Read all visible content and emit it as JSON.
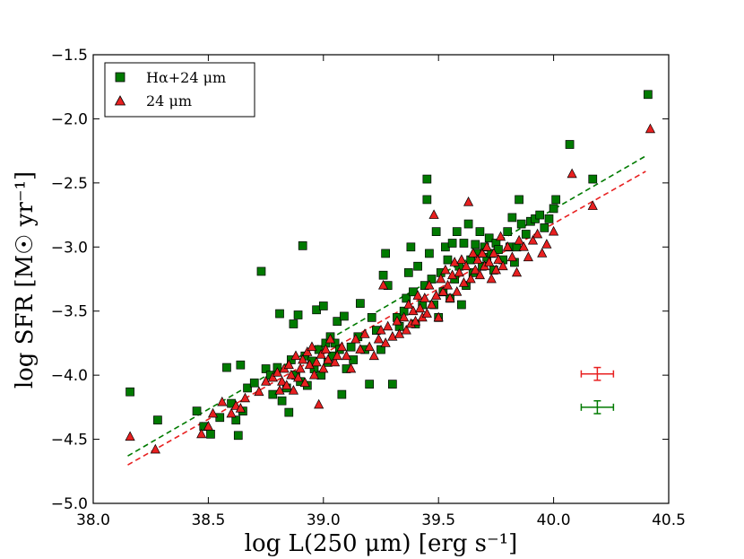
{
  "chart_data": {
    "type": "scatter",
    "xlabel": "log L(250 μm) [erg s⁻¹]",
    "ylabel": "log SFR [M☉ yr⁻¹]",
    "xlim": [
      38.0,
      40.5
    ],
    "ylim": [
      -5.0,
      -1.5
    ],
    "xticks": [
      "38.0",
      "38.5",
      "39.0",
      "39.5",
      "40.0",
      "40.5"
    ],
    "yticks": [
      "−1.5",
      "−2.0",
      "−2.5",
      "−3.0",
      "−3.5",
      "−4.0",
      "−4.5",
      "−5.0"
    ],
    "xtick_values": [
      38.0,
      38.5,
      39.0,
      39.5,
      40.0,
      40.5
    ],
    "ytick_values": [
      -1.5,
      -2.0,
      -2.5,
      -3.0,
      -3.5,
      -4.0,
      -4.5,
      -5.0
    ],
    "legend_position": "top-left",
    "series": [
      {
        "name": "Hα+24 μm",
        "marker": "square",
        "color": "#007a00",
        "fit_line": {
          "x": [
            38.15,
            40.4
          ],
          "y": [
            -4.63,
            -2.29
          ]
        },
        "error_bar": {
          "x": 40.19,
          "y": -4.25,
          "xerr": 0.07,
          "yerr": 0.05
        },
        "points": [
          [
            38.16,
            -4.13
          ],
          [
            38.28,
            -4.35
          ],
          [
            38.45,
            -4.28
          ],
          [
            38.48,
            -4.4
          ],
          [
            38.51,
            -4.46
          ],
          [
            38.55,
            -4.33
          ],
          [
            38.58,
            -3.94
          ],
          [
            38.6,
            -4.22
          ],
          [
            38.62,
            -4.35
          ],
          [
            38.63,
            -4.47
          ],
          [
            38.64,
            -3.92
          ],
          [
            38.65,
            -4.28
          ],
          [
            38.67,
            -4.1
          ],
          [
            38.7,
            -4.06
          ],
          [
            38.73,
            -3.19
          ],
          [
            38.75,
            -3.95
          ],
          [
            38.77,
            -4.0
          ],
          [
            38.78,
            -4.15
          ],
          [
            38.8,
            -3.94
          ],
          [
            38.81,
            -3.52
          ],
          [
            38.82,
            -4.2
          ],
          [
            38.84,
            -4.1
          ],
          [
            38.85,
            -4.29
          ],
          [
            38.86,
            -3.88
          ],
          [
            38.87,
            -3.6
          ],
          [
            38.88,
            -4.0
          ],
          [
            38.89,
            -3.53
          ],
          [
            38.9,
            -4.05
          ],
          [
            38.91,
            -2.99
          ],
          [
            38.92,
            -3.85
          ],
          [
            38.93,
            -4.08
          ],
          [
            38.95,
            -3.89
          ],
          [
            38.96,
            -3.95
          ],
          [
            38.97,
            -3.49
          ],
          [
            38.98,
            -3.8
          ],
          [
            38.99,
            -4.0
          ],
          [
            39.0,
            -3.46
          ],
          [
            39.01,
            -3.75
          ],
          [
            39.02,
            -3.9
          ],
          [
            39.03,
            -3.7
          ],
          [
            39.04,
            -3.85
          ],
          [
            39.05,
            -3.75
          ],
          [
            39.06,
            -3.58
          ],
          [
            39.07,
            -3.8
          ],
          [
            39.08,
            -4.15
          ],
          [
            39.09,
            -3.54
          ],
          [
            39.1,
            -3.95
          ],
          [
            39.12,
            -3.78
          ],
          [
            39.13,
            -3.88
          ],
          [
            39.15,
            -3.7
          ],
          [
            39.16,
            -3.44
          ],
          [
            39.18,
            -3.8
          ],
          [
            39.2,
            -4.07
          ],
          [
            39.21,
            -3.55
          ],
          [
            39.23,
            -3.65
          ],
          [
            39.25,
            -3.8
          ],
          [
            39.26,
            -3.22
          ],
          [
            39.27,
            -3.05
          ],
          [
            39.28,
            -3.3
          ],
          [
            39.3,
            -4.07
          ],
          [
            39.32,
            -3.55
          ],
          [
            39.33,
            -3.62
          ],
          [
            39.35,
            -3.5
          ],
          [
            39.36,
            -3.4
          ],
          [
            39.37,
            -3.2
          ],
          [
            39.38,
            -3.0
          ],
          [
            39.39,
            -3.35
          ],
          [
            39.4,
            -3.6
          ],
          [
            39.41,
            -3.15
          ],
          [
            39.43,
            -3.45
          ],
          [
            39.44,
            -3.3
          ],
          [
            39.45,
            -2.47
          ],
          [
            39.45,
            -2.63
          ],
          [
            39.46,
            -3.05
          ],
          [
            39.47,
            -3.25
          ],
          [
            39.48,
            -3.45
          ],
          [
            39.49,
            -2.88
          ],
          [
            39.5,
            -3.55
          ],
          [
            39.51,
            -3.2
          ],
          [
            39.52,
            -3.35
          ],
          [
            39.53,
            -3.0
          ],
          [
            39.54,
            -3.1
          ],
          [
            39.55,
            -3.4
          ],
          [
            39.56,
            -2.97
          ],
          [
            39.57,
            -3.25
          ],
          [
            39.58,
            -2.88
          ],
          [
            39.59,
            -3.15
          ],
          [
            39.6,
            -3.45
          ],
          [
            39.61,
            -2.97
          ],
          [
            39.62,
            -3.3
          ],
          [
            39.63,
            -2.82
          ],
          [
            39.64,
            -3.1
          ],
          [
            39.65,
            -3.2
          ],
          [
            39.66,
            -2.98
          ],
          [
            39.67,
            -3.05
          ],
          [
            39.68,
            -2.88
          ],
          [
            39.69,
            -3.15
          ],
          [
            39.7,
            -3.0
          ],
          [
            39.71,
            -3.08
          ],
          [
            39.72,
            -2.93
          ],
          [
            39.73,
            -3.05
          ],
          [
            39.74,
            -3.18
          ],
          [
            39.75,
            -2.97
          ],
          [
            39.76,
            -3.02
          ],
          [
            39.78,
            -3.1
          ],
          [
            39.8,
            -2.88
          ],
          [
            39.81,
            -3.0
          ],
          [
            39.82,
            -2.77
          ],
          [
            39.83,
            -3.12
          ],
          [
            39.84,
            -3.0
          ],
          [
            39.85,
            -2.63
          ],
          [
            39.86,
            -2.82
          ],
          [
            39.88,
            -2.9
          ],
          [
            39.9,
            -2.8
          ],
          [
            39.92,
            -2.78
          ],
          [
            39.94,
            -2.75
          ],
          [
            39.96,
            -2.85
          ],
          [
            39.98,
            -2.78
          ],
          [
            40.0,
            -2.7
          ],
          [
            40.01,
            -2.63
          ],
          [
            40.07,
            -2.2
          ],
          [
            40.17,
            -2.47
          ],
          [
            40.41,
            -1.81
          ]
        ]
      },
      {
        "name": "24 μm",
        "marker": "triangle",
        "color": "#e82020",
        "fit_line": {
          "x": [
            38.15,
            40.4
          ],
          "y": [
            -4.7,
            -2.41
          ]
        },
        "error_bar": {
          "x": 40.19,
          "y": -3.99,
          "xerr": 0.07,
          "yerr": 0.05
        },
        "points": [
          [
            38.16,
            -4.48
          ],
          [
            38.27,
            -4.58
          ],
          [
            38.47,
            -4.46
          ],
          [
            38.5,
            -4.4
          ],
          [
            38.52,
            -4.3
          ],
          [
            38.56,
            -4.21
          ],
          [
            38.6,
            -4.3
          ],
          [
            38.62,
            -4.24
          ],
          [
            38.64,
            -4.26
          ],
          [
            38.66,
            -4.18
          ],
          [
            38.72,
            -4.13
          ],
          [
            38.75,
            -4.05
          ],
          [
            38.78,
            -4.02
          ],
          [
            38.8,
            -3.98
          ],
          [
            38.81,
            -4.12
          ],
          [
            38.82,
            -4.05
          ],
          [
            38.83,
            -3.95
          ],
          [
            38.84,
            -4.08
          ],
          [
            38.85,
            -3.92
          ],
          [
            38.86,
            -4.0
          ],
          [
            38.87,
            -4.12
          ],
          [
            38.88,
            -3.85
          ],
          [
            38.89,
            -4.02
          ],
          [
            38.9,
            -3.95
          ],
          [
            38.91,
            -3.88
          ],
          [
            38.92,
            -4.06
          ],
          [
            38.93,
            -3.82
          ],
          [
            38.94,
            -3.92
          ],
          [
            38.95,
            -3.78
          ],
          [
            38.96,
            -4.0
          ],
          [
            38.97,
            -3.9
          ],
          [
            38.98,
            -4.23
          ],
          [
            38.99,
            -3.84
          ],
          [
            39.0,
            -3.95
          ],
          [
            39.01,
            -3.8
          ],
          [
            39.02,
            -3.88
          ],
          [
            39.03,
            -3.72
          ],
          [
            39.05,
            -3.9
          ],
          [
            39.06,
            -3.85
          ],
          [
            39.08,
            -3.78
          ],
          [
            39.1,
            -3.85
          ],
          [
            39.12,
            -3.95
          ],
          [
            39.14,
            -3.72
          ],
          [
            39.16,
            -3.8
          ],
          [
            39.18,
            -3.68
          ],
          [
            39.2,
            -3.78
          ],
          [
            39.22,
            -3.85
          ],
          [
            39.24,
            -3.72
          ],
          [
            39.25,
            -3.65
          ],
          [
            39.26,
            -3.3
          ],
          [
            39.27,
            -3.75
          ],
          [
            39.28,
            -3.62
          ],
          [
            39.3,
            -3.7
          ],
          [
            39.32,
            -3.58
          ],
          [
            39.33,
            -3.68
          ],
          [
            39.35,
            -3.55
          ],
          [
            39.36,
            -3.65
          ],
          [
            39.37,
            -3.45
          ],
          [
            39.38,
            -3.6
          ],
          [
            39.39,
            -3.5
          ],
          [
            39.4,
            -3.58
          ],
          [
            39.41,
            -3.38
          ],
          [
            39.42,
            -3.48
          ],
          [
            39.43,
            -3.55
          ],
          [
            39.44,
            -3.4
          ],
          [
            39.45,
            -3.52
          ],
          [
            39.46,
            -3.3
          ],
          [
            39.47,
            -3.45
          ],
          [
            39.48,
            -2.75
          ],
          [
            39.49,
            -3.38
          ],
          [
            39.5,
            -3.55
          ],
          [
            39.51,
            -3.25
          ],
          [
            39.52,
            -3.35
          ],
          [
            39.53,
            -3.18
          ],
          [
            39.54,
            -3.3
          ],
          [
            39.55,
            -3.4
          ],
          [
            39.56,
            -3.22
          ],
          [
            39.57,
            -3.12
          ],
          [
            39.58,
            -3.35
          ],
          [
            39.59,
            -3.2
          ],
          [
            39.6,
            -3.1
          ],
          [
            39.61,
            -3.28
          ],
          [
            39.62,
            -3.15
          ],
          [
            39.63,
            -2.65
          ],
          [
            39.64,
            -3.25
          ],
          [
            39.65,
            -3.05
          ],
          [
            39.66,
            -3.18
          ],
          [
            39.67,
            -3.1
          ],
          [
            39.68,
            -3.22
          ],
          [
            39.69,
            -3.05
          ],
          [
            39.7,
            -3.15
          ],
          [
            39.71,
            -3.0
          ],
          [
            39.72,
            -3.12
          ],
          [
            39.73,
            -3.25
          ],
          [
            39.74,
            -3.05
          ],
          [
            39.75,
            -3.18
          ],
          [
            39.76,
            -3.1
          ],
          [
            39.77,
            -2.92
          ],
          [
            39.78,
            -3.15
          ],
          [
            39.8,
            -3.0
          ],
          [
            39.82,
            -3.08
          ],
          [
            39.84,
            -3.2
          ],
          [
            39.85,
            -2.95
          ],
          [
            39.87,
            -3.0
          ],
          [
            39.89,
            -3.08
          ],
          [
            39.91,
            -2.95
          ],
          [
            39.93,
            -2.9
          ],
          [
            39.95,
            -3.05
          ],
          [
            39.97,
            -2.98
          ],
          [
            40.0,
            -2.88
          ],
          [
            40.08,
            -2.43
          ],
          [
            40.17,
            -2.68
          ],
          [
            40.42,
            -2.08
          ]
        ]
      }
    ]
  }
}
